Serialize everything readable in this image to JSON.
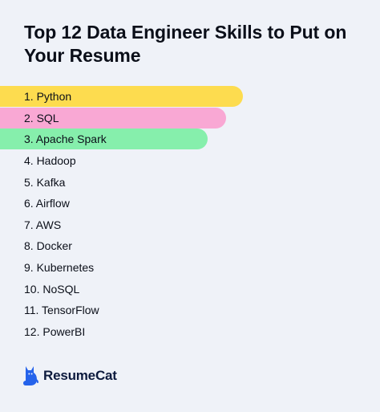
{
  "title": "Top 12 Data Engineer Skills to Put on Your Resume",
  "skills": [
    {
      "label": "1. Python",
      "highlight_fraction": 0.64,
      "color": "#fddc4f"
    },
    {
      "label": "2. SQL",
      "highlight_fraction": 0.594,
      "color": "#f9a8d4"
    },
    {
      "label": "3. Apache Spark",
      "highlight_fraction": 0.546,
      "color": "#86efac"
    },
    {
      "label": "4. Hadoop"
    },
    {
      "label": "5. Kafka"
    },
    {
      "label": "6. Airflow"
    },
    {
      "label": "7. AWS"
    },
    {
      "label": "8. Docker"
    },
    {
      "label": "9. Kubernetes"
    },
    {
      "label": "10. NoSQL"
    },
    {
      "label": "11. TensorFlow"
    },
    {
      "label": "12. PowerBI"
    }
  ],
  "brand": {
    "name": "ResumeCat",
    "icon": "cat-icon",
    "color": "#2563eb"
  }
}
